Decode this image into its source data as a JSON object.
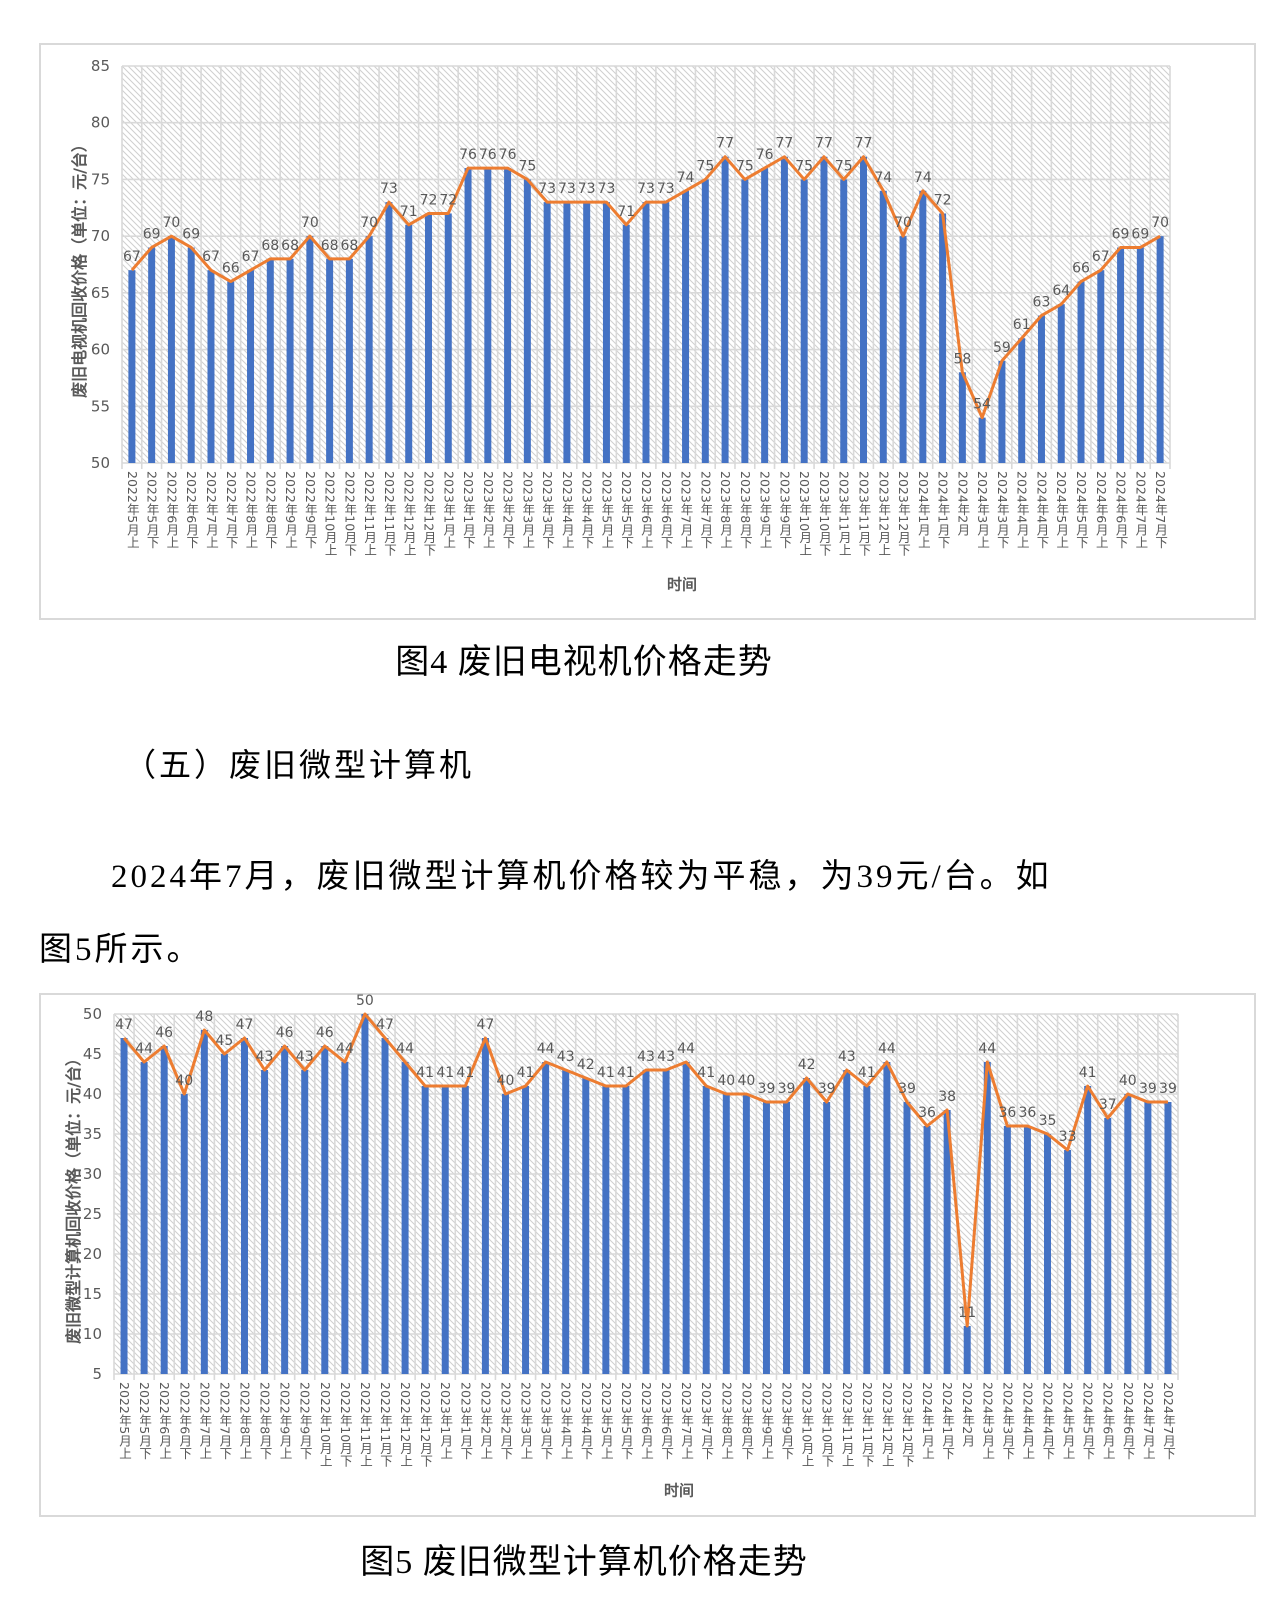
{
  "document": {
    "figure4_caption": "图4  废旧电视机价格走势",
    "section_heading": "（五）废旧微型计算机",
    "paragraph_line1": "2024年7月，废旧微型计算机价格较为平稳，为39元/台。如",
    "paragraph_line2": "图5所示。",
    "figure5_caption": "图5  废旧微型计算机价格走势"
  },
  "colors": {
    "bar": "#4472C4",
    "line": "#ED7D31",
    "grid": "#D9D9D9",
    "hatch": "#CFCFCF",
    "text": "#595959"
  },
  "chart_data": [
    {
      "type": "bar",
      "render_as": [
        "bar",
        "line"
      ],
      "title": "",
      "xlabel": "时间",
      "ylabel": "废旧电视机回收价格（单位：元/台）",
      "ylim": [
        50,
        85
      ],
      "yticks": [
        50,
        55,
        60,
        65,
        70,
        75,
        80,
        85
      ],
      "grid": true,
      "legend": null,
      "data_labels": true,
      "categories": [
        "2022年5月上",
        "2022年5月下",
        "2022年6月上",
        "2022年6月下",
        "2022年7月上",
        "2022年7月下",
        "2022年8月上",
        "2022年8月下",
        "2022年9月上",
        "2022年9月下",
        "2022年10月上",
        "2022年10月下",
        "2022年11月上",
        "2022年11月下",
        "2022年12月上",
        "2022年12月下",
        "2023年1月上",
        "2023年1月下",
        "2023年2月上",
        "2023年2月下",
        "2023年3月上",
        "2023年3月下",
        "2023年4月上",
        "2023年4月下",
        "2023年5月上",
        "2023年5月下",
        "2023年6月上",
        "2023年6月下",
        "2023年7月上",
        "2023年7月下",
        "2023年8月上",
        "2023年8月下",
        "2023年9月上",
        "2023年9月下",
        "2023年10月上",
        "2023年10月下",
        "2023年11月上",
        "2023年11月下",
        "2023年12月上",
        "2023年12月下",
        "2024年1月上",
        "2024年1月下",
        "2024年2月",
        "2024年3月上",
        "2024年3月下",
        "2024年4月上",
        "2024年4月下",
        "2024年5月上",
        "2024年5月下",
        "2024年6月上",
        "2024年6月下",
        "2024年7月上",
        "2024年7月下"
      ],
      "values": [
        67,
        69,
        70,
        69,
        67,
        66,
        67,
        68,
        68,
        70,
        68,
        68,
        70,
        73,
        71,
        72,
        72,
        76,
        76,
        76,
        75,
        73,
        73,
        73,
        73,
        71,
        73,
        73,
        74,
        75,
        77,
        75,
        76,
        77,
        75,
        77,
        75,
        77,
        74,
        70,
        74,
        72,
        58,
        54,
        59,
        61,
        63,
        64,
        66,
        67,
        69,
        69,
        70
      ]
    },
    {
      "type": "bar",
      "render_as": [
        "bar",
        "line"
      ],
      "title": "",
      "xlabel": "时间",
      "ylabel": "废旧微型计算机回收价格（单位：元/台）",
      "ylim": [
        5,
        50
      ],
      "yticks": [
        5,
        10,
        15,
        20,
        25,
        30,
        35,
        40,
        45,
        50
      ],
      "grid": true,
      "legend": null,
      "data_labels": true,
      "categories": [
        "2022年5月上",
        "2022年5月下",
        "2022年6月上",
        "2022年6月下",
        "2022年7月上",
        "2022年7月下",
        "2022年8月上",
        "2022年8月下",
        "2022年9月上",
        "2022年9月下",
        "2022年10月上",
        "2022年10月下",
        "2022年11月上",
        "2022年11月下",
        "2022年12月上",
        "2022年12月下",
        "2023年1月上",
        "2023年1月下",
        "2023年2月上",
        "2023年2月下",
        "2023年3月上",
        "2023年3月下",
        "2023年4月上",
        "2023年4月下",
        "2023年5月上",
        "2023年5月下",
        "2023年6月上",
        "2023年6月下",
        "2023年7月上",
        "2023年7月下",
        "2023年8月上",
        "2023年8月下",
        "2023年9月上",
        "2023年9月下",
        "2023年10月上",
        "2023年10月下",
        "2023年11月上",
        "2023年11月下",
        "2023年12月上",
        "2023年12月下",
        "2024年1月上",
        "2024年1月下",
        "2024年2月",
        "2024年3月上",
        "2024年3月下",
        "2024年4月上",
        "2024年4月下",
        "2024年5月上",
        "2024年5月下",
        "2024年6月上",
        "2024年6月下",
        "2024年7月上",
        "2024年7月下"
      ],
      "values": [
        47,
        44,
        46,
        40,
        48,
        45,
        47,
        43,
        46,
        43,
        46,
        44,
        50,
        47,
        44,
        41,
        41,
        41,
        47,
        40,
        41,
        44,
        43,
        42,
        41,
        41,
        43,
        43,
        44,
        41,
        40,
        40,
        39,
        39,
        42,
        39,
        43,
        41,
        44,
        39,
        36,
        38,
        11,
        44,
        36,
        36,
        35,
        33,
        41,
        37,
        40,
        39,
        39
      ]
    }
  ]
}
